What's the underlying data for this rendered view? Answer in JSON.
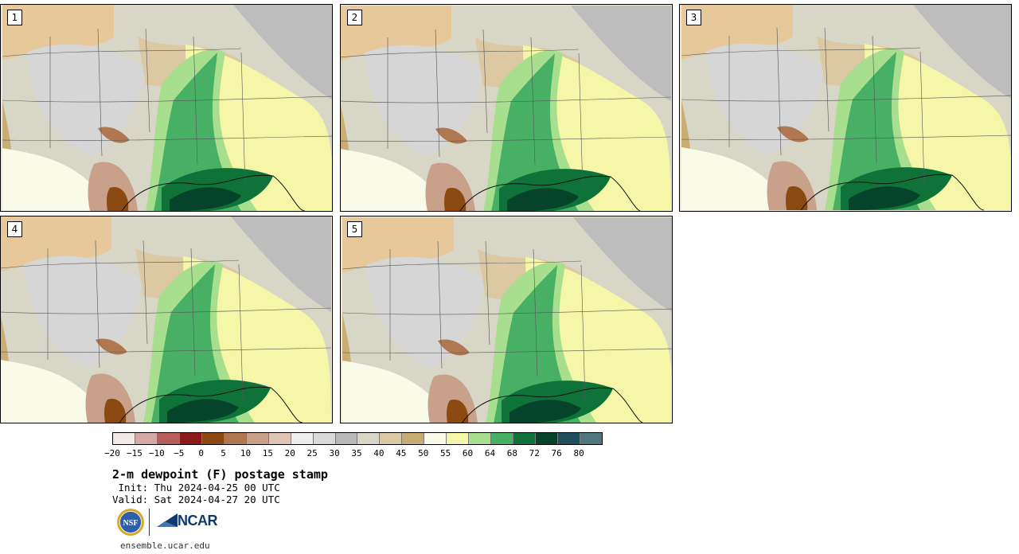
{
  "panels": [
    {
      "label": "1"
    },
    {
      "label": "2"
    },
    {
      "label": "3"
    },
    {
      "label": "4"
    },
    {
      "label": "5"
    }
  ],
  "colorbar": {
    "colors": [
      "#f3e9e6",
      "#d7a9a6",
      "#b55e5c",
      "#8a1a1c",
      "#8b4a12",
      "#b07850",
      "#c9a08a",
      "#dfc6b4",
      "#ededed",
      "#d9d9d9",
      "#b9b9b9",
      "#d8d6c7",
      "#dcc8a3",
      "#c7ab72",
      "#fafae8",
      "#f5f6a7",
      "#a8df8f",
      "#48b065",
      "#0f7339",
      "#05432a",
      "#1f4e5c",
      "#50777c"
    ],
    "labels": [
      "−20",
      "−15",
      "−10",
      "−5",
      "0",
      "5",
      "10",
      "15",
      "20",
      "25",
      "30",
      "35",
      "40",
      "45",
      "50",
      "55",
      "60",
      "64",
      "68",
      "72",
      "76",
      "80"
    ]
  },
  "title": "2-m dewpoint (F) postage stamp",
  "init_text": " Init: Thu 2024-04-25 00 UTC",
  "valid_text": "Valid: Sat 2024-04-27 20 UTC",
  "logos": {
    "nsf": "NSF",
    "ncar": "NCAR"
  },
  "website": "ensemble.ucar.edu"
}
